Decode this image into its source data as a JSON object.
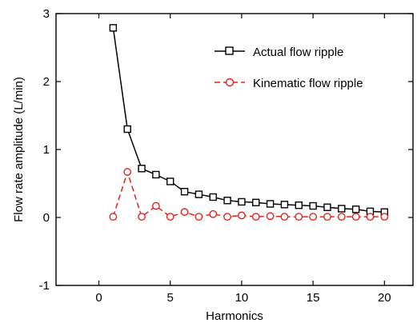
{
  "chart_data": {
    "type": "line",
    "xlabel": "Harmonics",
    "ylabel": "Flow rate amplitude (L/min)",
    "xlim": [
      -3,
      22
    ],
    "ylim": [
      -1,
      3
    ],
    "xticks": [
      0,
      5,
      10,
      15,
      20
    ],
    "yticks": [
      -1,
      0,
      1,
      2,
      3
    ],
    "grid": false,
    "legend_position": "top-right",
    "series": [
      {
        "name": "Actual flow ripple",
        "color": "#000000",
        "marker": "square",
        "line_style": "solid",
        "x": [
          1,
          2,
          3,
          4,
          5,
          6,
          7,
          8,
          9,
          10,
          11,
          12,
          13,
          14,
          15,
          16,
          17,
          18,
          19,
          20
        ],
        "values": [
          2.79,
          1.3,
          0.72,
          0.63,
          0.53,
          0.38,
          0.34,
          0.3,
          0.25,
          0.23,
          0.22,
          0.2,
          0.19,
          0.18,
          0.17,
          0.15,
          0.13,
          0.12,
          0.09,
          0.08
        ]
      },
      {
        "name": "Kinematic flow ripple",
        "color": "#e8201c",
        "marker": "circle",
        "line_style": "dashed",
        "x": [
          1,
          2,
          3,
          4,
          5,
          6,
          7,
          8,
          9,
          10,
          11,
          12,
          13,
          14,
          15,
          16,
          17,
          18,
          19,
          20
        ],
        "values": [
          0.01,
          0.67,
          0.01,
          0.17,
          0.01,
          0.08,
          0.01,
          0.05,
          0.01,
          0.03,
          0.01,
          0.02,
          0.01,
          0.01,
          0.01,
          0.01,
          0.01,
          0.01,
          0.01,
          0.01
        ]
      }
    ]
  }
}
